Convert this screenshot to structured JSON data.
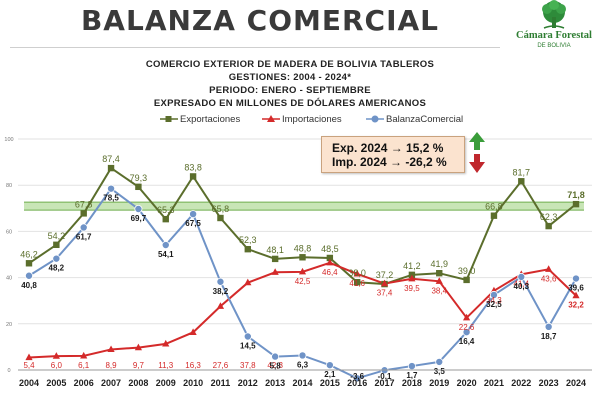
{
  "header": {
    "title": "BALANZA COMERCIAL",
    "logo_name": "Cámara Forestal",
    "logo_sub": "DE BOLIVIA"
  },
  "subtitle": {
    "line1": "COMERCIO EXTERIOR DE MADERA DE BOLIVIA TABLEROS",
    "line2": "GESTIONES: 2004 - 2024*",
    "line3": "PERIODO: ENERO - SEPTIEMBRE",
    "line4": "EXPRESADO EN MILLONES DE DÓLARES AMERICANOS"
  },
  "annotation": {
    "line1": "Exp. 2024 → 15,2 %",
    "line2": "Imp. 2024 → -26,2 %",
    "arrow_up_color": "#3a9d3a",
    "arrow_down_color": "#c0272d"
  },
  "colors": {
    "exportaciones": "#5b6e2c",
    "importaciones": "#d42a2a",
    "balanza": "#6f93c7",
    "highlight_band": "#9bcf7a"
  },
  "chart_data": {
    "type": "line",
    "x": [
      "2004",
      "2005",
      "2006",
      "2007",
      "2008",
      "2009",
      "2010",
      "2011",
      "2012",
      "2013",
      "2014",
      "2015",
      "2016",
      "2017",
      "2018",
      "2019",
      "2020",
      "2021",
      "2022",
      "2023",
      "2024"
    ],
    "ylim": [
      0,
      100
    ],
    "yticks": [
      "0",
      "20",
      "40",
      "60",
      "80",
      "100"
    ],
    "grid": true,
    "legend_position": "top",
    "series": [
      {
        "name": "Exportaciones",
        "marker": "square",
        "values": [
          46.2,
          54.2,
          67.8,
          87.4,
          79.3,
          65.3,
          83.8,
          65.8,
          52.3,
          48.1,
          48.8,
          48.5,
          38.0,
          37.2,
          41.2,
          41.9,
          39.0,
          66.8,
          81.7,
          62.3,
          71.8
        ],
        "labels": [
          "46,2",
          "54,2",
          "67,8",
          "87,4",
          "79,3",
          "65,3",
          "83,8",
          "65,8",
          "52,3",
          "48,1",
          "48,8",
          "48,5",
          "38,0",
          "37,2",
          "41,2",
          "41,9",
          "39,0",
          "66,8",
          "81,7",
          "62,3",
          "71,8"
        ]
      },
      {
        "name": "Importaciones",
        "marker": "triangle",
        "values": [
          5.4,
          6.0,
          6.1,
          8.9,
          9.7,
          11.3,
          16.3,
          27.6,
          37.8,
          42.3,
          42.5,
          46.4,
          41.6,
          37.4,
          39.5,
          38.4,
          22.6,
          34.3,
          41.4,
          43.6,
          32.2
        ],
        "labels": [
          "5,4",
          "6,0",
          "6,1",
          "8,9",
          "9,7",
          "11,3",
          "16,3",
          "27,6",
          "37,8",
          "42,3",
          "42,5",
          "46,4",
          "41,6",
          "37,4",
          "39,5",
          "38,4",
          "22,6",
          "34,3",
          "41,4",
          "43,6",
          "32,2"
        ]
      },
      {
        "name": "BalanzaComercial",
        "marker": "circle",
        "values": [
          40.8,
          48.2,
          61.7,
          78.5,
          69.7,
          54.1,
          67.5,
          38.2,
          14.5,
          5.8,
          6.3,
          2.1,
          -3.6,
          -0.1,
          1.7,
          3.5,
          16.4,
          32.5,
          40.3,
          18.7,
          39.6
        ],
        "labels": [
          "40,8",
          "48,2",
          "61,7",
          "78,5",
          "69,7",
          "54,1",
          "67,5",
          "38,2",
          "14,5",
          "5,8",
          "6,3",
          "2,1",
          "-3,6",
          "-0,1",
          "1,7",
          "3,5",
          "16,4",
          "32,5",
          "40,3",
          "18,7",
          "39,6"
        ]
      }
    ],
    "highlight_band_value": 71.8
  }
}
